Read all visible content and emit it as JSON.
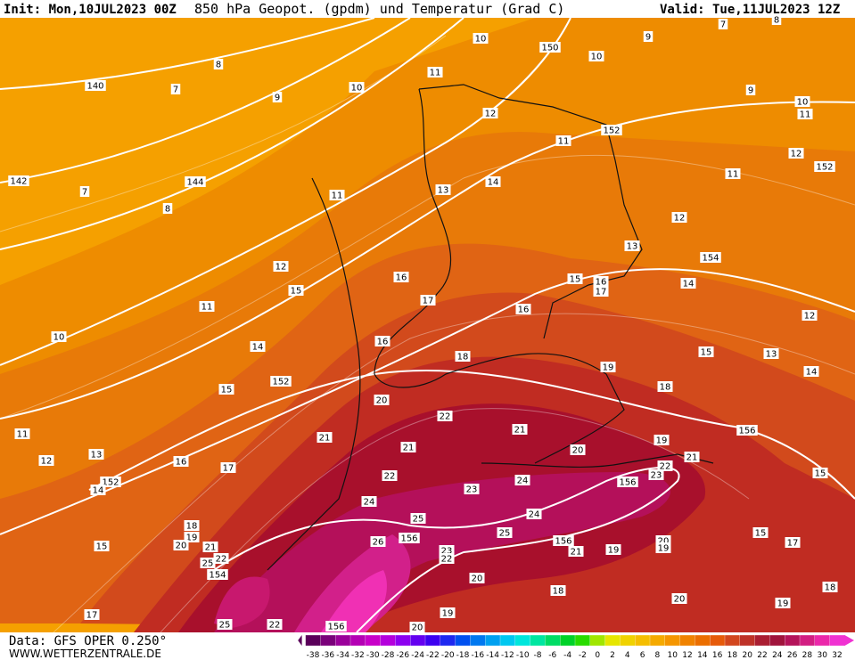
{
  "header": {
    "init": "Init: Mon,10JUL2023 00Z",
    "title": "850 hPa Geopot. (gpdm) und Temperatur (Grad C)",
    "valid": "Valid: Tue,11JUL2023 12Z"
  },
  "footer": {
    "data_source": "Data: GFS OPER 0.250°",
    "website": "WWW.WETTERZENTRALE.DE"
  },
  "colorbar": {
    "labels": [
      -38,
      -36,
      -34,
      -32,
      -30,
      -28,
      -26,
      -24,
      -22,
      -20,
      -18,
      -16,
      -14,
      -12,
      -10,
      -8,
      -6,
      -4,
      -2,
      0,
      2,
      4,
      6,
      8,
      10,
      12,
      14,
      16,
      18,
      20,
      22,
      24,
      26,
      28,
      30,
      32
    ],
    "colors": [
      "#5a005a",
      "#7a007a",
      "#9a009a",
      "#b400b4",
      "#c800c8",
      "#b400dc",
      "#8c00f0",
      "#6400f0",
      "#3c00f0",
      "#1e28f0",
      "#0050f0",
      "#0078f0",
      "#00a0f0",
      "#00c8f0",
      "#00e6dc",
      "#00e6a0",
      "#00dc64",
      "#00d228",
      "#28dc00",
      "#a0e600",
      "#e6e600",
      "#f0d200",
      "#f5be00",
      "#f5aa00",
      "#f59600",
      "#f08200",
      "#eb6e00",
      "#e65a0a",
      "#d2461e",
      "#be3228",
      "#aa1e32",
      "#a0143c",
      "#b4145a",
      "#d21e82",
      "#eb28aa",
      "#f032d2"
    ]
  },
  "map": {
    "contour_labels": [
      "10",
      "150",
      "10",
      "9",
      "7",
      "8",
      "8",
      "7",
      "140",
      "10",
      "9",
      "11",
      "12",
      "152",
      "11",
      "10",
      "11",
      "9",
      "12",
      "152",
      "11",
      "142",
      "144",
      "7",
      "8",
      "11",
      "13",
      "14",
      "12",
      "13",
      "154",
      "12",
      "15",
      "16",
      "17",
      "15",
      "16",
      "17",
      "14",
      "16",
      "12",
      "11",
      "10",
      "16",
      "18",
      "19",
      "15",
      "13",
      "14",
      "14",
      "152",
      "15",
      "18",
      "20",
      "22",
      "21",
      "21",
      "21",
      "20",
      "19",
      "156",
      "21",
      "11",
      "13",
      "12",
      "16",
      "17",
      "22",
      "152",
      "14",
      "24",
      "156",
      "22",
      "23",
      "15",
      "23",
      "24",
      "25",
      "24",
      "18",
      "19",
      "25",
      "156",
      "156",
      "26",
      "20",
      "15",
      "17",
      "15",
      "20",
      "21",
      "25",
      "22",
      "23",
      "22",
      "21",
      "19",
      "19",
      "154",
      "20",
      "18",
      "18",
      "20",
      "19",
      "17",
      "19",
      "25",
      "22",
      "156",
      "20"
    ]
  }
}
